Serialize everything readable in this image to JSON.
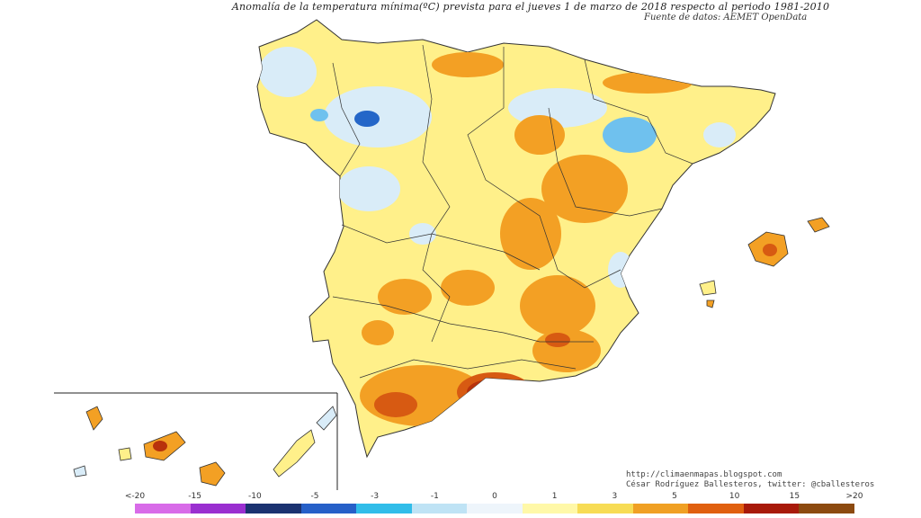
{
  "title": "Anomalía de la temperatura mínima(ºC) prevista para el jueves 1 de marzo de 2018 respecto al periodo 1981-2010",
  "source": "Fuente de datos: AEMET OpenData",
  "credits": [
    "http://climaenmapas.blogspot.com",
    "César Rodríguez Ballesteros, twitter: @cballesteros"
  ],
  "legend": {
    "labels": [
      "<-20",
      "-15",
      "-10",
      "-5",
      "-3",
      "-1",
      "0",
      "1",
      "3",
      "5",
      "10",
      "15",
      ">20"
    ],
    "colors": [
      "#d86be8",
      "#9a2fd0",
      "#1b3270",
      "#2660c8",
      "#31bde9",
      "#bfe3f5",
      "#eef5fb",
      "#fff8a8",
      "#f7dc55",
      "#f0a024",
      "#e06010",
      "#a81a0a",
      "#8c4a10"
    ]
  },
  "map": {
    "land_base": "#fff08a",
    "warm": "#f3a024",
    "hot": "#d75a12",
    "very_hot": "#b8320c",
    "cold_light": "#d9ecf8",
    "cold": "#6fc1ee",
    "cold_dark": "#2466c8",
    "border": "#333333"
  }
}
